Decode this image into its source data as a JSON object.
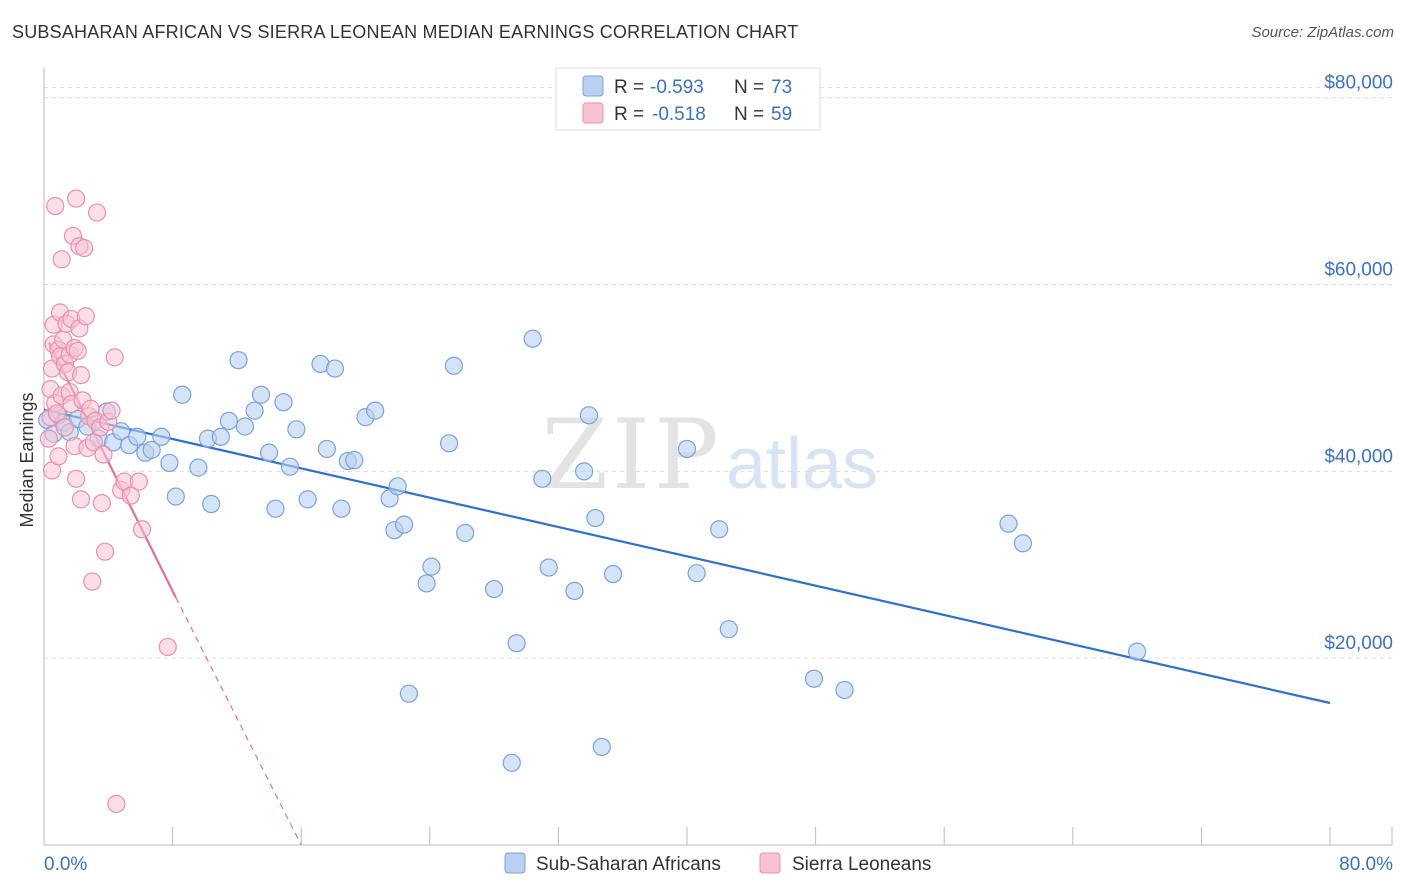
{
  "title": "SUBSAHARAN AFRICAN VS SIERRA LEONEAN MEDIAN EARNINGS CORRELATION CHART",
  "source": "Source: ZipAtlas.com",
  "watermark": {
    "zip": "ZIP",
    "atlas": "atlas"
  },
  "colors": {
    "blue_fill": "#b9d0f0",
    "blue_stroke": "#7aa3dc",
    "blue_line": "#2f6fd0",
    "pink_fill": "#f7c3d3",
    "pink_stroke": "#e890ad",
    "pink_line": "#e0709a",
    "axis_text": "#3a72c4",
    "grid": "#dddddd"
  },
  "legend": {
    "r_label": "R =",
    "n_label": "N =",
    "blue": {
      "r": "-0.593",
      "n": "73"
    },
    "pink": {
      "r": "-0.518",
      "n": "59"
    }
  },
  "bottom_legend": {
    "blue": "Sub-Saharan Africans",
    "pink": "Sierra Leoneans"
  },
  "chart_data": {
    "type": "scatter",
    "title": "SUBSAHARAN AFRICAN VS SIERRA LEONEAN MEDIAN EARNINGS CORRELATION CHART",
    "xlabel": "",
    "ylabel": "Median Earnings",
    "xlim": [
      0,
      80
    ],
    "ylim": [
      0,
      82000
    ],
    "x_tick_labels": [
      "0.0%",
      "80.0%"
    ],
    "y_ticks": [
      20000,
      40000,
      60000,
      80000
    ],
    "y_tick_labels": [
      "$20,000",
      "$40,000",
      "$60,000",
      "$80,000"
    ],
    "series": [
      {
        "name": "Sub-Saharan Africans",
        "r": -0.593,
        "n": 73,
        "trend": {
          "x": [
            0,
            80
          ],
          "y": [
            46600,
            15200
          ]
        },
        "points": [
          [
            0.2,
            45500
          ],
          [
            0.6,
            44000
          ],
          [
            0.9,
            46000
          ],
          [
            1.2,
            45200
          ],
          [
            1.6,
            44200
          ],
          [
            2.1,
            45600
          ],
          [
            2.7,
            44800
          ],
          [
            3.4,
            43500
          ],
          [
            3.9,
            46400
          ],
          [
            4.3,
            43100
          ],
          [
            4.8,
            44300
          ],
          [
            5.3,
            42800
          ],
          [
            5.8,
            43700
          ],
          [
            6.3,
            42000
          ],
          [
            6.7,
            42300
          ],
          [
            7.3,
            43700
          ],
          [
            7.8,
            40900
          ],
          [
            8.2,
            37300
          ],
          [
            8.6,
            48200
          ],
          [
            9.6,
            40400
          ],
          [
            10.2,
            43500
          ],
          [
            10.4,
            36500
          ],
          [
            11.0,
            43700
          ],
          [
            11.5,
            45400
          ],
          [
            12.1,
            51900
          ],
          [
            12.5,
            44800
          ],
          [
            13.1,
            46500
          ],
          [
            13.5,
            48200
          ],
          [
            14.0,
            42000
          ],
          [
            14.4,
            36000
          ],
          [
            14.9,
            47400
          ],
          [
            15.3,
            40500
          ],
          [
            15.7,
            44500
          ],
          [
            16.4,
            37000
          ],
          [
            17.2,
            51500
          ],
          [
            17.6,
            42400
          ],
          [
            18.1,
            51000
          ],
          [
            18.5,
            36000
          ],
          [
            18.9,
            41100
          ],
          [
            19.3,
            41200
          ],
          [
            20.0,
            45800
          ],
          [
            20.6,
            46500
          ],
          [
            21.5,
            37100
          ],
          [
            21.8,
            33700
          ],
          [
            22.0,
            38400
          ],
          [
            22.4,
            34300
          ],
          [
            22.7,
            16200
          ],
          [
            23.8,
            28000
          ],
          [
            24.1,
            29800
          ],
          [
            25.2,
            43000
          ],
          [
            25.5,
            51300
          ],
          [
            26.2,
            33400
          ],
          [
            28.0,
            27400
          ],
          [
            29.1,
            8800
          ],
          [
            29.4,
            21600
          ],
          [
            30.4,
            54200
          ],
          [
            31.0,
            39200
          ],
          [
            31.4,
            29700
          ],
          [
            33.0,
            27200
          ],
          [
            33.6,
            40000
          ],
          [
            33.9,
            46000
          ],
          [
            34.3,
            35000
          ],
          [
            34.7,
            10500
          ],
          [
            35.4,
            29000
          ],
          [
            40.0,
            42400
          ],
          [
            40.6,
            29100
          ],
          [
            42.0,
            33800
          ],
          [
            42.6,
            23100
          ],
          [
            47.9,
            17800
          ],
          [
            49.8,
            16600
          ],
          [
            60.0,
            34400
          ],
          [
            60.9,
            32300
          ],
          [
            68.0,
            20700
          ]
        ]
      },
      {
        "name": "Sierra Leoneans",
        "r": -0.518,
        "n": 59,
        "trend": {
          "x": [
            0.3,
            8.2
          ],
          "y": [
            53800,
            26500
          ]
        },
        "trend_extension": {
          "x": [
            8.2,
            16.0
          ],
          "y": [
            26500,
            0
          ]
        },
        "points": [
          [
            0.3,
            43500
          ],
          [
            0.4,
            45800
          ],
          [
            0.4,
            48800
          ],
          [
            0.5,
            40100
          ],
          [
            0.5,
            51000
          ],
          [
            0.6,
            53600
          ],
          [
            0.6,
            55700
          ],
          [
            0.7,
            68400
          ],
          [
            0.7,
            47300
          ],
          [
            0.8,
            46200
          ],
          [
            0.9,
            41600
          ],
          [
            0.9,
            53000
          ],
          [
            1.0,
            52300
          ],
          [
            1.0,
            57000
          ],
          [
            1.1,
            62700
          ],
          [
            1.1,
            48100
          ],
          [
            1.2,
            54100
          ],
          [
            1.3,
            51500
          ],
          [
            1.3,
            44700
          ],
          [
            1.4,
            55800
          ],
          [
            1.5,
            50600
          ],
          [
            1.6,
            52500
          ],
          [
            1.6,
            48500
          ],
          [
            1.7,
            56300
          ],
          [
            1.7,
            47200
          ],
          [
            1.8,
            65200
          ],
          [
            1.9,
            53200
          ],
          [
            1.9,
            42700
          ],
          [
            2.0,
            69200
          ],
          [
            2.0,
            39200
          ],
          [
            2.1,
            52900
          ],
          [
            2.2,
            64100
          ],
          [
            2.2,
            55300
          ],
          [
            2.3,
            50300
          ],
          [
            2.3,
            37000
          ],
          [
            2.4,
            47600
          ],
          [
            2.5,
            63900
          ],
          [
            2.6,
            56600
          ],
          [
            2.7,
            42500
          ],
          [
            2.8,
            45900
          ],
          [
            2.9,
            46700
          ],
          [
            3.0,
            28200
          ],
          [
            3.1,
            43100
          ],
          [
            3.2,
            45400
          ],
          [
            3.3,
            67700
          ],
          [
            3.5,
            44700
          ],
          [
            3.6,
            36600
          ],
          [
            3.8,
            31400
          ],
          [
            4.0,
            45300
          ],
          [
            4.2,
            46500
          ],
          [
            4.4,
            52200
          ],
          [
            4.8,
            38000
          ],
          [
            5.0,
            38900
          ],
          [
            5.4,
            37400
          ],
          [
            5.9,
            38900
          ],
          [
            6.1,
            33800
          ],
          [
            7.7,
            21200
          ],
          [
            4.5,
            4400
          ],
          [
            3.7,
            41800
          ]
        ]
      }
    ]
  }
}
